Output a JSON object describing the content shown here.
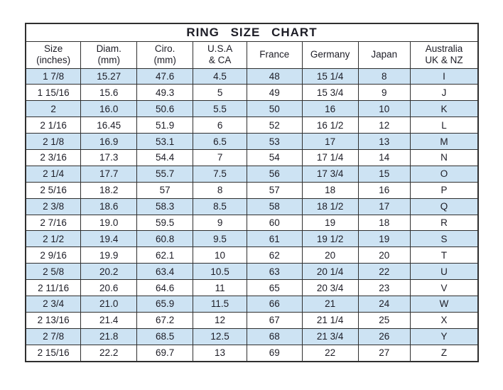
{
  "colors": {
    "row_alt": "#cde3f3",
    "border": "#2f2f2f",
    "text": "#1d1d26",
    "background": "#ffffff"
  },
  "chart_data": {
    "type": "table",
    "title": "RING SIZE CHART",
    "columns": [
      {
        "label": "Size (inches)",
        "line1": "Size",
        "line2": "(inches)"
      },
      {
        "label": "Diam. (mm)",
        "line1": "Diam.",
        "line2": "(mm)"
      },
      {
        "label": "Ciro. (mm)",
        "line1": "Ciro.",
        "line2": "(mm)"
      },
      {
        "label": "U.S.A & CA",
        "line1": "U.S.A",
        "line2": "& CA"
      },
      {
        "label": "France",
        "line1": "France",
        "line2": ""
      },
      {
        "label": "Germany",
        "line1": "Germany",
        "line2": ""
      },
      {
        "label": "Japan",
        "line1": "Japan",
        "line2": ""
      },
      {
        "label": "Australia UK & NZ",
        "line1": "Australia",
        "line2": "UK & NZ"
      }
    ],
    "rows": [
      [
        "1 7/8",
        "15.27",
        "47.6",
        "4.5",
        "48",
        "15 1/4",
        "8",
        "I"
      ],
      [
        "1 15/16",
        "15.6",
        "49.3",
        "5",
        "49",
        "15 3/4",
        "9",
        "J"
      ],
      [
        "2",
        "16.0",
        "50.6",
        "5.5",
        "50",
        "16",
        "10",
        "K"
      ],
      [
        "2 1/16",
        "16.45",
        "51.9",
        "6",
        "52",
        "16 1/2",
        "12",
        "L"
      ],
      [
        "2 1/8",
        "16.9",
        "53.1",
        "6.5",
        "53",
        "17",
        "13",
        "M"
      ],
      [
        "2 3/16",
        "17.3",
        "54.4",
        "7",
        "54",
        "17 1/4",
        "14",
        "N"
      ],
      [
        "2 1/4",
        "17.7",
        "55.7",
        "7.5",
        "56",
        "17 3/4",
        "15",
        "O"
      ],
      [
        "2 5/16",
        "18.2",
        "57",
        "8",
        "57",
        "18",
        "16",
        "P"
      ],
      [
        "2 3/8",
        "18.6",
        "58.3",
        "8.5",
        "58",
        "18 1/2",
        "17",
        "Q"
      ],
      [
        "2 7/16",
        "19.0",
        "59.5",
        "9",
        "60",
        "19",
        "18",
        "R"
      ],
      [
        "2 1/2",
        "19.4",
        "60.8",
        "9.5",
        "61",
        "19 1/2",
        "19",
        "S"
      ],
      [
        "2 9/16",
        "19.9",
        "62.1",
        "10",
        "62",
        "20",
        "20",
        "T"
      ],
      [
        "2 5/8",
        "20.2",
        "63.4",
        "10.5",
        "63",
        "20 1/4",
        "22",
        "U"
      ],
      [
        "2 11/16",
        "20.6",
        "64.6",
        "11",
        "65",
        "20 3/4",
        "23",
        "V"
      ],
      [
        "2 3/4",
        "21.0",
        "65.9",
        "11.5",
        "66",
        "21",
        "24",
        "W"
      ],
      [
        "2 13/16",
        "21.4",
        "67.2",
        "12",
        "67",
        "21 1/4",
        "25",
        "X"
      ],
      [
        "2 7/8",
        "21.8",
        "68.5",
        "12.5",
        "68",
        "21 3/4",
        "26",
        "Y"
      ],
      [
        "2 15/16",
        "22.2",
        "69.7",
        "13",
        "69",
        "22",
        "27",
        "Z"
      ]
    ]
  }
}
